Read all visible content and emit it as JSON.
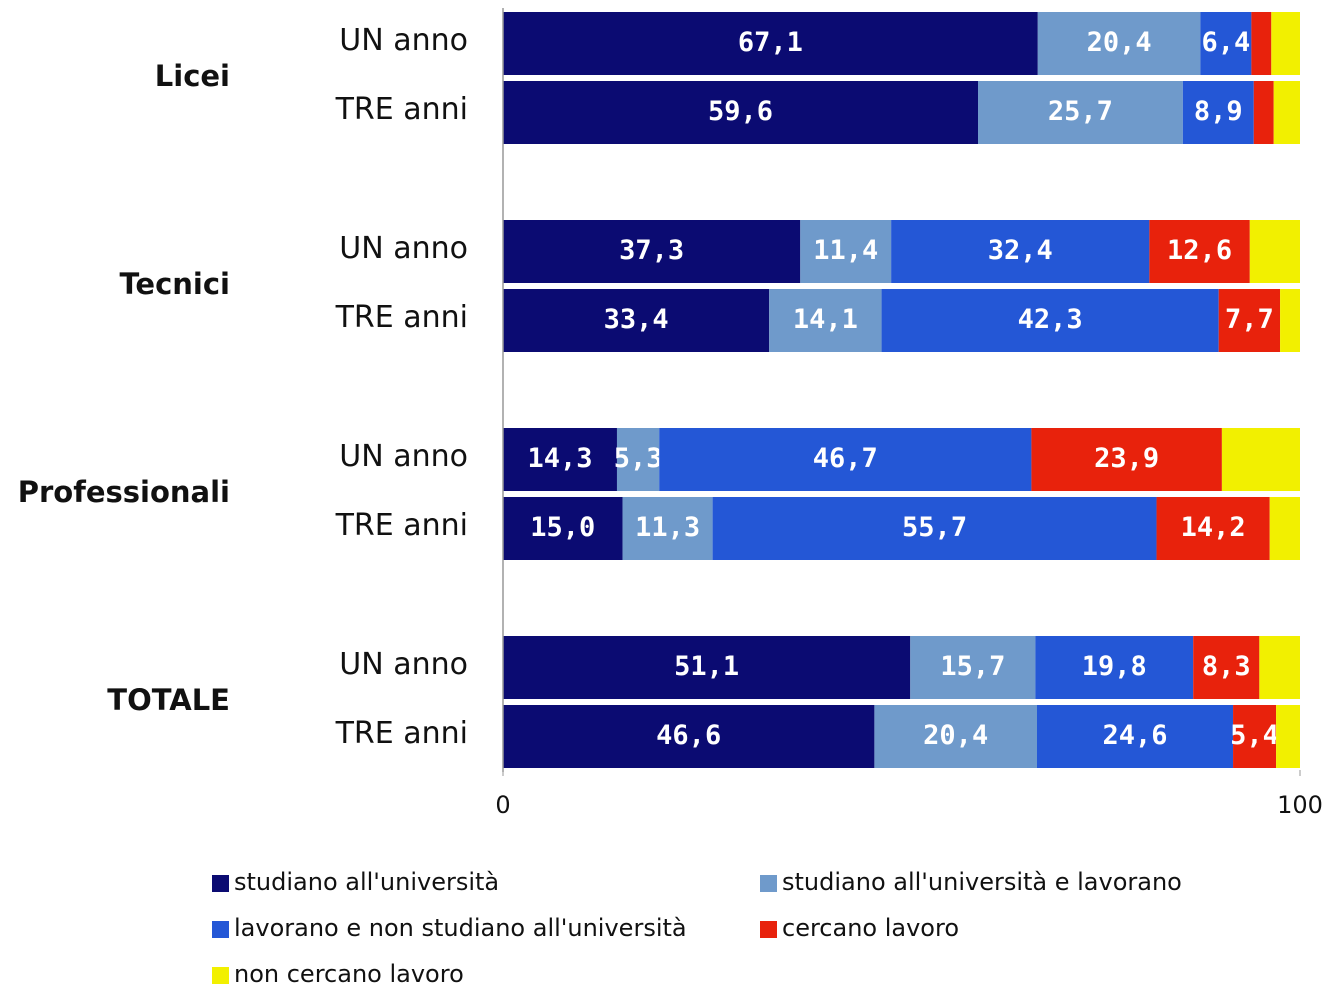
{
  "chart_data": {
    "type": "stacked-barh",
    "groups": [
      {
        "name": "Licei",
        "categories": [
          "UN anno",
          "TRE anni"
        ]
      },
      {
        "name": "Tecnici",
        "categories": [
          "UN anno",
          "TRE anni"
        ]
      },
      {
        "name": "Professionali",
        "categories": [
          "UN anno",
          "TRE anni"
        ]
      },
      {
        "name": "TOTALE",
        "categories": [
          "UN anno",
          "TRE anni"
        ]
      }
    ],
    "series": [
      {
        "name": "studiano all'università",
        "color": "#0b0b72",
        "values": [
          67.1,
          59.6,
          37.3,
          33.4,
          14.3,
          15.0,
          51.1,
          46.6
        ],
        "value_labels": [
          "67,1",
          "59,6",
          "37,3",
          "33,4",
          "14,3",
          "15,0",
          "51,1",
          "46,6"
        ]
      },
      {
        "name": "studiano all'università e lavorano",
        "color": "#6f9acb",
        "values": [
          20.4,
          25.7,
          11.4,
          14.1,
          5.3,
          11.3,
          15.7,
          20.4
        ],
        "value_labels": [
          "20,4",
          "25,7",
          "11,4",
          "14,1",
          "5,3",
          "11,3",
          "15,7",
          "20,4"
        ]
      },
      {
        "name": "lavorano e non studiano all'università",
        "color": "#2457d6",
        "values": [
          6.4,
          8.9,
          32.4,
          42.3,
          46.7,
          55.7,
          19.8,
          24.6
        ],
        "value_labels": [
          "6,4",
          "8,9",
          "32,4",
          "42,3",
          "46,7",
          "55,7",
          "19,8",
          "24,6"
        ]
      },
      {
        "name": "cercano lavoro",
        "color": "#e8220c",
        "values": [
          2.5,
          2.5,
          12.6,
          7.7,
          23.9,
          14.2,
          8.3,
          5.4
        ],
        "value_labels": [
          null,
          null,
          "12,6",
          "7,7",
          "23,9",
          "14,2",
          "8,3",
          "5,4"
        ]
      },
      {
        "name": "non cercano lavoro",
        "color": "#f2f000",
        "values": [
          3.6,
          3.3,
          6.3,
          2.5,
          9.8,
          3.8,
          5.1,
          3.0
        ]
      }
    ],
    "xlim": [
      0,
      100
    ],
    "xticks": [
      0,
      100
    ]
  }
}
